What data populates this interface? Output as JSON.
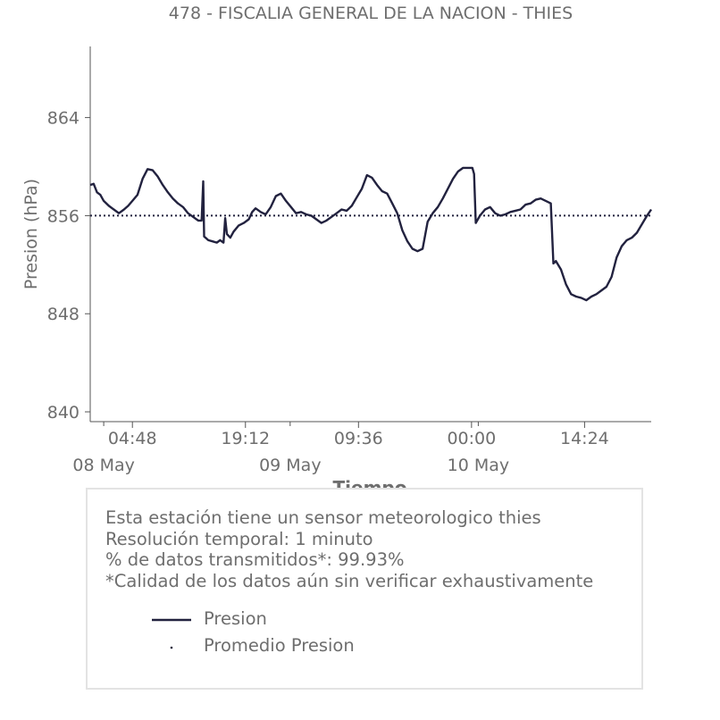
{
  "chart_data": {
    "type": "line",
    "title": "478 - FISCALIA GENERAL DE LA NACION - THIES",
    "xlabel": "Tiempo",
    "ylabel": "Presion (hPa)",
    "ylim": [
      839.2,
      869.8
    ],
    "yticks": [
      840,
      848,
      856,
      864
    ],
    "ytick_labels": [
      "840",
      "848",
      "856",
      "864"
    ],
    "x_range_hours": [
      0,
      66.5
    ],
    "xticks_hours": [
      5,
      18.4,
      31.8,
      45.2,
      58.6
    ],
    "xtick_labels": [
      "04:48",
      "19:12",
      "09:36",
      "00:00",
      "14:24"
    ],
    "date_ticks_hours": [
      1.6,
      23.7,
      46.0
    ],
    "date_labels": [
      "08 May",
      "09 May",
      "10 May"
    ],
    "minor_ticks_hours": [
      1.6,
      23.7,
      46.0
    ],
    "grid": false,
    "legend_placement": "below chart",
    "series": [
      {
        "name": "Presion",
        "color": "#22223f",
        "style": "solid",
        "x_hours": [
          0,
          0.4,
          0.8,
          1.2,
          1.6,
          2.2,
          2.8,
          3.4,
          4.0,
          4.5,
          5.0,
          5.6,
          6.2,
          6.8,
          7.4,
          8.0,
          8.6,
          9.2,
          9.8,
          10.4,
          11.0,
          11.6,
          12.2,
          12.8,
          13.2,
          13.4,
          13.5,
          14.0,
          14.5,
          15.0,
          15.4,
          15.8,
          16.0,
          16.2,
          16.6,
          17.0,
          17.6,
          18.2,
          18.8,
          19.2,
          19.6,
          20.2,
          20.8,
          21.4,
          22.0,
          22.6,
          23.2,
          23.8,
          24.4,
          25.0,
          25.6,
          26.2,
          26.8,
          27.4,
          28.0,
          28.6,
          29.2,
          29.8,
          30.4,
          31.0,
          31.6,
          32.2,
          32.8,
          33.4,
          34.0,
          34.6,
          35.2,
          35.8,
          36.4,
          37.0,
          37.6,
          38.2,
          38.8,
          39.4,
          40.0,
          40.6,
          41.2,
          41.8,
          42.4,
          43.0,
          43.6,
          44.2,
          44.8,
          45.3,
          45.5,
          45.7,
          46.2,
          46.8,
          47.4,
          48.0,
          48.6,
          49.2,
          49.8,
          50.4,
          51.0,
          51.6,
          52.2,
          52.8,
          53.4,
          54.0,
          54.6,
          54.9,
          55.2,
          55.8,
          56.4,
          57.0,
          57.6,
          58.2,
          58.8,
          59.4,
          60.0,
          60.6,
          61.2,
          61.8,
          62.4,
          63.0,
          63.6,
          64.2,
          64.8,
          65.4,
          66.0,
          66.5
        ],
        "y": [
          858.5,
          858.6,
          857.9,
          857.7,
          857.2,
          856.8,
          856.5,
          856.2,
          856.5,
          856.8,
          857.2,
          857.7,
          859.0,
          859.8,
          859.7,
          859.2,
          858.5,
          857.9,
          857.4,
          857.0,
          856.7,
          856.2,
          855.9,
          855.6,
          855.6,
          858.8,
          854.3,
          854.0,
          853.9,
          853.8,
          854.0,
          853.8,
          855.8,
          854.5,
          854.2,
          854.7,
          855.2,
          855.4,
          855.7,
          856.3,
          856.6,
          856.3,
          856.1,
          856.7,
          857.6,
          857.8,
          857.2,
          856.7,
          856.2,
          856.3,
          856.1,
          856.0,
          855.7,
          855.4,
          855.6,
          855.9,
          856.2,
          856.5,
          856.4,
          856.8,
          857.5,
          858.2,
          859.3,
          859.1,
          858.5,
          858.0,
          857.8,
          857.0,
          856.2,
          854.8,
          853.9,
          853.3,
          853.1,
          853.3,
          855.5,
          856.2,
          856.7,
          857.4,
          858.2,
          859.0,
          859.6,
          859.9,
          859.9,
          859.9,
          859.4,
          855.4,
          856.0,
          856.5,
          856.7,
          856.2,
          856.0,
          856.1,
          856.3,
          856.4,
          856.5,
          856.9,
          857.0,
          857.3,
          857.4,
          857.2,
          857.0,
          852.1,
          852.3,
          851.6,
          850.4,
          849.6,
          849.4,
          849.3,
          849.1,
          849.4,
          849.6,
          849.9,
          850.2,
          851.0,
          852.6,
          853.5,
          854.0,
          854.2,
          854.6,
          855.3,
          856.0,
          856.5
        ]
      },
      {
        "name": "Promedio Presion",
        "color": "#22223f",
        "style": "dotted",
        "x_hours": [
          0,
          66.5
        ],
        "y": [
          856.0,
          856.0
        ]
      }
    ]
  },
  "info": {
    "lines": [
      "Esta estación tiene un sensor meteorologico thies",
      "Resolución temporal: 1 minuto",
      "% de datos transmitidos*: 99.93%",
      "*Calidad de los datos aún sin verificar exhaustivamente"
    ]
  },
  "legend": [
    {
      "label": "Presion",
      "symbol": "line",
      "color": "#22223f"
    },
    {
      "label": "Promedio Presion",
      "symbol": "dot",
      "color": "#22223f"
    }
  ]
}
